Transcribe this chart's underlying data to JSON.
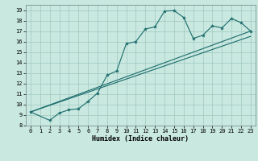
{
  "xlabel": "Humidex (Indice chaleur)",
  "background_color": "#c8e8e0",
  "grid_color": "#a0c8c0",
  "line_color": "#1a6b6b",
  "xlim": [
    -0.5,
    23.5
  ],
  "ylim": [
    8,
    19.5
  ],
  "xticks": [
    0,
    1,
    2,
    3,
    4,
    5,
    6,
    7,
    8,
    9,
    10,
    11,
    12,
    13,
    14,
    15,
    16,
    17,
    18,
    19,
    20,
    21,
    22,
    23
  ],
  "yticks": [
    8,
    9,
    10,
    11,
    12,
    13,
    14,
    15,
    16,
    17,
    18,
    19
  ],
  "curve_x": [
    0,
    2,
    3,
    4,
    5,
    6,
    7,
    8,
    9,
    10,
    11,
    12,
    13,
    14,
    15,
    16,
    17,
    18,
    19,
    20,
    21,
    22,
    23
  ],
  "curve_y": [
    9.3,
    8.5,
    9.2,
    9.5,
    9.6,
    10.3,
    11.1,
    12.8,
    13.2,
    15.8,
    16.0,
    17.2,
    17.4,
    18.9,
    18.95,
    18.3,
    16.3,
    16.6,
    17.5,
    17.3,
    18.2,
    17.8,
    17.0
  ],
  "line1_x": [
    0,
    23
  ],
  "line1_y": [
    9.3,
    17.0
  ],
  "line2_x": [
    0,
    23
  ],
  "line2_y": [
    9.3,
    16.5
  ],
  "tick_fontsize": 5,
  "xlabel_fontsize": 6
}
